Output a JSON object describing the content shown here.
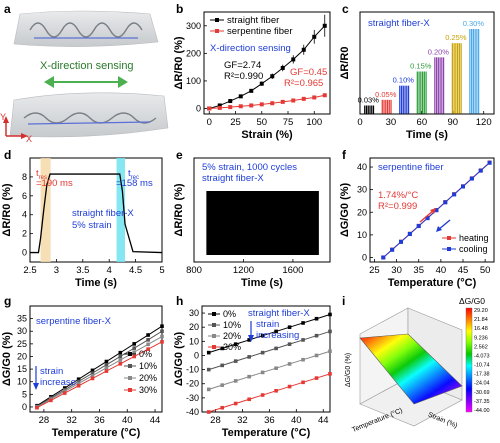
{
  "panels": {
    "a": {
      "label": "a",
      "sensing_text": "X-direction sensing",
      "axis_y": "Y",
      "axis_x": "X",
      "colors": {
        "fabric": "#d9dcdf",
        "fiber": "#5b6fd6",
        "arrow": "#4caf50",
        "axes": "#d32f2f"
      }
    },
    "b": {
      "label": "b"
    },
    "c": {
      "label": "c"
    },
    "d": {
      "label": "d"
    },
    "e": {
      "label": "e"
    },
    "f": {
      "label": "f"
    },
    "g": {
      "label": "g"
    },
    "h": {
      "label": "h"
    },
    "i": {
      "label": "i"
    }
  },
  "chart_data": [
    {
      "id": "b",
      "type": "line",
      "xlabel": "Strain (%)",
      "ylabel": "ΔR/R0 (%)",
      "xlim": [
        -5,
        115
      ],
      "ylim": [
        -20,
        350
      ],
      "xticks": [
        0,
        25,
        50,
        75,
        100
      ],
      "yticks": [
        0,
        100,
        200,
        300
      ],
      "legend_position": "top-left",
      "series": [
        {
          "name": "straight fiber",
          "color": "#000000",
          "marker": "square",
          "x": [
            0,
            10,
            20,
            30,
            40,
            50,
            60,
            70,
            80,
            90,
            100,
            110
          ],
          "y": [
            0,
            11,
            27,
            44,
            64,
            90,
            117,
            147,
            178,
            213,
            260,
            300
          ],
          "err": [
            0,
            2,
            3,
            4,
            6,
            8,
            10,
            12,
            15,
            18,
            25,
            40
          ]
        },
        {
          "name": "serpentine fiber",
          "color": "#e53935",
          "marker": "square",
          "x": [
            0,
            10,
            20,
            30,
            40,
            50,
            60,
            70,
            80,
            90,
            100,
            110
          ],
          "y": [
            0,
            2,
            5,
            8,
            11,
            15,
            19,
            24,
            29,
            35,
            40,
            48
          ]
        }
      ],
      "annotations": [
        {
          "text": "X-direction sensing",
          "color": "#1e3cd8"
        },
        {
          "text": "GF=2.74",
          "color": "#000000"
        },
        {
          "text": "R²=0.990",
          "color": "#000000"
        },
        {
          "text": "GF=0.45",
          "color": "#e53935"
        },
        {
          "text": "R²=0.965",
          "color": "#e53935"
        }
      ]
    },
    {
      "id": "c",
      "type": "bar",
      "title": "straight fiber-X",
      "xlabel": "Time (s)",
      "ylabel": "ΔR/R0",
      "xlim": [
        0,
        130
      ],
      "xticks": [
        0,
        30,
        60,
        90,
        120
      ],
      "groups": [
        {
          "label": "0.03%",
          "x_start": 4,
          "value": 0.03,
          "color": "#000000"
        },
        {
          "label": "0.05%",
          "x_start": 21,
          "value": 0.05,
          "color": "#e53935"
        },
        {
          "label": "0.10%",
          "x_start": 38,
          "value": 0.1,
          "color": "#1e3cd8"
        },
        {
          "label": "0.15%",
          "x_start": 55,
          "value": 0.15,
          "color": "#2e9e3a"
        },
        {
          "label": "0.20%",
          "x_start": 72,
          "value": 0.2,
          "color": "#8e44ad"
        },
        {
          "label": "0.25%",
          "x_start": 89,
          "value": 0.25,
          "color": "#c9a200"
        },
        {
          "label": "0.30%",
          "x_start": 106,
          "value": 0.3,
          "color": "#4aa8e8"
        }
      ]
    },
    {
      "id": "d",
      "type": "line",
      "xlabel": "Time (s)",
      "ylabel": "ΔR/R0 (%)",
      "xlim": [
        2.5,
        5.0
      ],
      "ylim": [
        -1,
        10
      ],
      "xticks": [
        2.5,
        3.0,
        3.5,
        4.0,
        4.5,
        5.0
      ],
      "yticks": [
        0,
        2,
        4,
        6,
        8
      ],
      "series": [
        {
          "color": "#000000",
          "x": [
            2.5,
            2.66,
            2.7,
            2.76,
            2.82,
            2.88,
            4.13,
            4.2,
            4.25,
            4.3,
            4.45,
            5.0
          ],
          "y": [
            0,
            0,
            1.5,
            4.5,
            7.2,
            8.3,
            8.3,
            8.3,
            6.5,
            3,
            0.1,
            0
          ]
        }
      ],
      "shaded_regions": [
        {
          "x": [
            2.7,
            2.89
          ],
          "color": "#f5d9a8"
        },
        {
          "x": [
            4.14,
            4.3
          ],
          "color": "#6fe3ef"
        }
      ],
      "annotations": [
        {
          "text": "t",
          "sub": "res",
          "value": "=190 ms",
          "color": "#e53935"
        },
        {
          "text": "t",
          "sub": "rec",
          "value": "=158 ms",
          "color": "#1e3cd8"
        },
        {
          "text": "straight fiber-X",
          "color": "#1e3cd8"
        },
        {
          "text": "5% strain",
          "color": "#1e3cd8"
        }
      ]
    },
    {
      "id": "e",
      "type": "area",
      "xlabel": "Time (s)",
      "ylabel": "ΔR/R0 (%)",
      "xlim": [
        800,
        1900
      ],
      "xticks": [
        800,
        1200,
        1600
      ],
      "band": {
        "x": [
          900,
          1810
        ],
        "color": "#000000"
      },
      "annotations": [
        {
          "text": "5% strain, 1000 cycles",
          "color": "#1e3cd8"
        },
        {
          "text": "straight fiber-X",
          "color": "#1e3cd8"
        }
      ]
    },
    {
      "id": "f",
      "type": "line",
      "xlabel": "Temperature (°C)",
      "ylabel": "ΔG/G0 (%)",
      "xlim": [
        24,
        52
      ],
      "ylim": [
        -2,
        44
      ],
      "xticks": [
        25,
        30,
        35,
        40,
        45,
        50
      ],
      "yticks": [
        0,
        10,
        20,
        30,
        40
      ],
      "legend_position": "bottom-right",
      "series": [
        {
          "name": "heating",
          "color": "#e53935",
          "marker": "square",
          "x": [
            27,
            29,
            31,
            33,
            35,
            37,
            39,
            41,
            43,
            45,
            47,
            49,
            51
          ],
          "y": [
            0,
            3.5,
            7,
            10.5,
            14,
            17.5,
            21,
            24.5,
            28,
            31.5,
            35,
            38.5,
            42
          ]
        },
        {
          "name": "cooling",
          "color": "#1e3cd8",
          "marker": "square",
          "x": [
            27,
            29,
            31,
            33,
            35,
            37,
            39,
            41,
            43,
            45,
            47,
            49,
            51
          ],
          "y": [
            0,
            3.4,
            6.9,
            10.4,
            13.9,
            17.4,
            20.9,
            24.4,
            27.9,
            31.4,
            34.9,
            38.4,
            41.9
          ]
        }
      ],
      "annotations": [
        {
          "text": "serpentine fiber",
          "color": "#1e3cd8"
        },
        {
          "text": "1.74%/°C",
          "color": "#e53935"
        },
        {
          "text": "R²=0.999",
          "color": "#e53935"
        }
      ]
    },
    {
      "id": "g",
      "type": "line",
      "xlabel": "Temperature (°C)",
      "ylabel": "ΔG/G0 (%)",
      "xlim": [
        26,
        45
      ],
      "ylim": [
        -2,
        40
      ],
      "xticks": [
        28,
        32,
        36,
        40,
        44
      ],
      "yticks": [
        0,
        5,
        10,
        15,
        20,
        25,
        30,
        35
      ],
      "legend_position": "right",
      "series": [
        {
          "name": "0%",
          "color": "#000000",
          "marker": "square",
          "x": [
            27,
            29,
            31,
            33,
            35,
            37,
            39,
            41,
            43,
            45
          ],
          "y": [
            0.5,
            4,
            7.5,
            11,
            14.5,
            18,
            21.5,
            25,
            28.5,
            32
          ]
        },
        {
          "name": "10%",
          "color": "#555555",
          "marker": "square",
          "x": [
            27,
            29,
            31,
            33,
            35,
            37,
            39,
            41,
            43,
            45
          ],
          "y": [
            0.2,
            3.5,
            6.8,
            10.1,
            13.4,
            16.7,
            20,
            23.3,
            26.6,
            30
          ]
        },
        {
          "name": "20%",
          "color": "#888888",
          "marker": "square",
          "x": [
            27,
            29,
            31,
            33,
            35,
            37,
            39,
            41,
            43,
            45
          ],
          "y": [
            0,
            3.1,
            6.2,
            9.3,
            12.4,
            15.5,
            18.6,
            21.7,
            24.8,
            27.9
          ]
        },
        {
          "name": "30%",
          "color": "#e53935",
          "marker": "square",
          "x": [
            27,
            29,
            31,
            33,
            35,
            37,
            39,
            41,
            43,
            45
          ],
          "y": [
            -0.3,
            2.6,
            5.5,
            8.4,
            11.3,
            14.2,
            17.1,
            20,
            22.9,
            25.8
          ]
        }
      ],
      "annotations": [
        {
          "text": "serpentine fiber-X",
          "color": "#1e3cd8"
        },
        {
          "text": "strain",
          "color": "#1e3cd8"
        },
        {
          "text": "increase",
          "color": "#1e3cd8"
        }
      ]
    },
    {
      "id": "h",
      "type": "line",
      "xlabel": "Temperature (°C)",
      "ylabel": "ΔG/G0 (%)",
      "xlim": [
        26,
        45
      ],
      "ylim": [
        -40,
        35
      ],
      "xticks": [
        28,
        32,
        36,
        40,
        44
      ],
      "yticks": [
        -40,
        -30,
        -20,
        -10,
        0,
        10,
        20,
        30
      ],
      "legend_position": "top-left",
      "series": [
        {
          "name": "0%",
          "color": "#000000",
          "marker": "square",
          "x": [
            27,
            29,
            31,
            33,
            35,
            37,
            39,
            41,
            43,
            45
          ],
          "y": [
            2,
            5,
            8,
            11,
            14,
            17,
            20,
            23,
            26,
            29
          ]
        },
        {
          "name": "10%",
          "color": "#555555",
          "marker": "square",
          "x": [
            27,
            29,
            31,
            33,
            35,
            37,
            39,
            41,
            43,
            45
          ],
          "y": [
            -10,
            -7,
            -4,
            -1,
            2,
            5,
            8,
            11,
            14,
            17
          ]
        },
        {
          "name": "20%",
          "color": "#888888",
          "marker": "square",
          "x": [
            27,
            29,
            31,
            33,
            35,
            37,
            39,
            41,
            43,
            45
          ],
          "y": [
            -24,
            -21,
            -18,
            -15,
            -12,
            -9,
            -6,
            -3,
            0,
            3
          ]
        },
        {
          "name": "30%",
          "color": "#e53935",
          "marker": "square",
          "x": [
            27,
            29,
            31,
            33,
            35,
            37,
            39,
            41,
            43,
            45
          ],
          "y": [
            -40,
            -37,
            -34,
            -31,
            -28,
            -25,
            -22,
            -19,
            -16,
            -13
          ]
        }
      ],
      "annotations": [
        {
          "text": "straight fiber-X",
          "color": "#1e3cd8"
        },
        {
          "text": "strain",
          "color": "#1e3cd8"
        },
        {
          "text": "increasing",
          "color": "#1e3cd8"
        }
      ]
    },
    {
      "id": "i",
      "type": "heatmap",
      "colorbar_title": "ΔG/G0",
      "colorbar_ticks": [
        "29.20",
        "21.84",
        "16.48",
        "9.236",
        "2.562",
        "-4.073",
        "-10.74",
        "-17.38",
        "-24.04",
        "-30.69",
        "-37.35",
        "-44.00"
      ],
      "colors": [
        "#ff0000",
        "#ff7f00",
        "#ffff00",
        "#7fff00",
        "#00c800",
        "#00ffff",
        "#0080ff",
        "#0000ff",
        "#7f00ff",
        "#ff00ff"
      ],
      "axis_labels": [
        "Temperature (°C)",
        "Strain (%)",
        "ΔG/G0 (%)"
      ]
    }
  ]
}
